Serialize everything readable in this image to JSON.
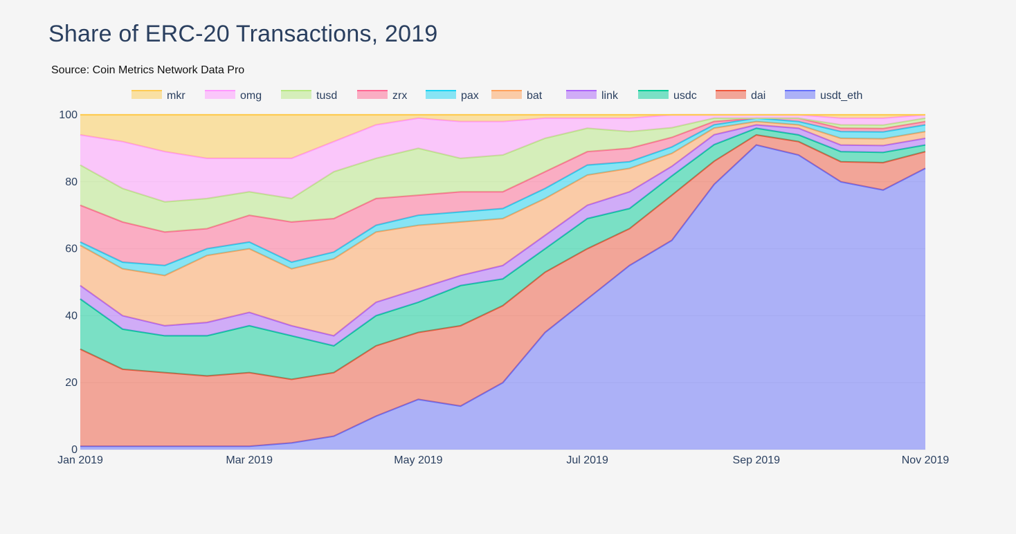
{
  "chart_data": {
    "type": "area",
    "stacked": true,
    "normalized": true,
    "title": "Share of ERC-20 Transactions, 2019",
    "subtitle": "Source: Coin Metrics Network Data Pro",
    "xlabel": "",
    "ylabel": "",
    "ylim": [
      0,
      100
    ],
    "grid": true,
    "legend_position": "top",
    "y_ticks": [
      "0",
      "20",
      "40",
      "60",
      "80",
      "100"
    ],
    "x_ticks": [
      "Jan 2019",
      "Mar 2019",
      "May 2019",
      "Jul 2019",
      "Sep 2019",
      "Nov 2019"
    ],
    "x": [
      "Jan 2019",
      "Jan 2019",
      "Feb 2019",
      "Feb 2019",
      "Mar 2019",
      "Mar 2019",
      "Apr 2019",
      "Apr 2019",
      "May 2019",
      "May 2019",
      "Jun 2019",
      "Jun 2019",
      "Jul 2019",
      "Jul 2019",
      "Aug 2019",
      "Aug 2019",
      "Sep 2019",
      "Sep 2019",
      "Oct 2019",
      "Oct 2019",
      "Nov 2019"
    ],
    "legend_order": [
      "mkr",
      "omg",
      "tusd",
      "zrx",
      "pax",
      "bat",
      "link",
      "usdc",
      "dai",
      "usdt_eth"
    ],
    "series": [
      {
        "name": "usdt_eth",
        "color": "#636efa",
        "values": [
          1,
          1,
          1,
          1,
          1,
          2,
          4,
          10,
          15,
          13,
          20,
          35,
          45,
          55,
          65,
          80,
          91,
          88,
          80,
          76,
          84
        ]
      },
      {
        "name": "dai",
        "color": "#ef553b",
        "values": [
          29,
          23,
          22,
          21,
          22,
          19,
          19,
          21,
          20,
          24,
          23,
          18,
          15,
          11,
          14,
          7,
          3,
          4,
          6,
          8,
          5
        ]
      },
      {
        "name": "usdc",
        "color": "#00cc96",
        "values": [
          15,
          12,
          11,
          12,
          14,
          13,
          8,
          9,
          9,
          12,
          8,
          7,
          9,
          6,
          6,
          5,
          2,
          2,
          3,
          3,
          2
        ]
      },
      {
        "name": "link",
        "color": "#ab63fa",
        "values": [
          4,
          4,
          3,
          4,
          4,
          3,
          3,
          4,
          4,
          3,
          4,
          4,
          4,
          5,
          3,
          3,
          1,
          2,
          2,
          2,
          2
        ]
      },
      {
        "name": "bat",
        "color": "#ffa15a",
        "values": [
          12,
          14,
          15,
          20,
          19,
          17,
          23,
          21,
          19,
          16,
          14,
          11,
          9,
          7,
          4,
          2,
          1,
          1,
          2,
          2,
          2
        ]
      },
      {
        "name": "pax",
        "color": "#19d3f3",
        "values": [
          1,
          2,
          3,
          2,
          2,
          2,
          2,
          2,
          3,
          3,
          3,
          3,
          3,
          2,
          2,
          1,
          1,
          1,
          2,
          2,
          2
        ]
      },
      {
        "name": "zrx",
        "color": "#ff6692",
        "values": [
          11,
          12,
          10,
          6,
          8,
          12,
          10,
          8,
          6,
          6,
          5,
          5,
          4,
          4,
          3,
          1,
          0,
          1,
          1,
          1,
          1
        ]
      },
      {
        "name": "tusd",
        "color": "#b6e880",
        "values": [
          12,
          10,
          9,
          9,
          7,
          7,
          14,
          12,
          14,
          10,
          11,
          10,
          7,
          5,
          3,
          1,
          0,
          0,
          1,
          1,
          1
        ]
      },
      {
        "name": "omg",
        "color": "#ff97ff",
        "values": [
          9,
          14,
          15,
          12,
          10,
          12,
          9,
          10,
          9,
          11,
          10,
          6,
          3,
          4,
          4,
          1,
          1,
          1,
          2,
          2,
          1
        ]
      },
      {
        "name": "mkr",
        "color": "#fecb52",
        "values": [
          6,
          8,
          11,
          13,
          13,
          13,
          8,
          3,
          1,
          2,
          2,
          1,
          1,
          1,
          0,
          0,
          0,
          0,
          1,
          1,
          0
        ]
      }
    ]
  }
}
